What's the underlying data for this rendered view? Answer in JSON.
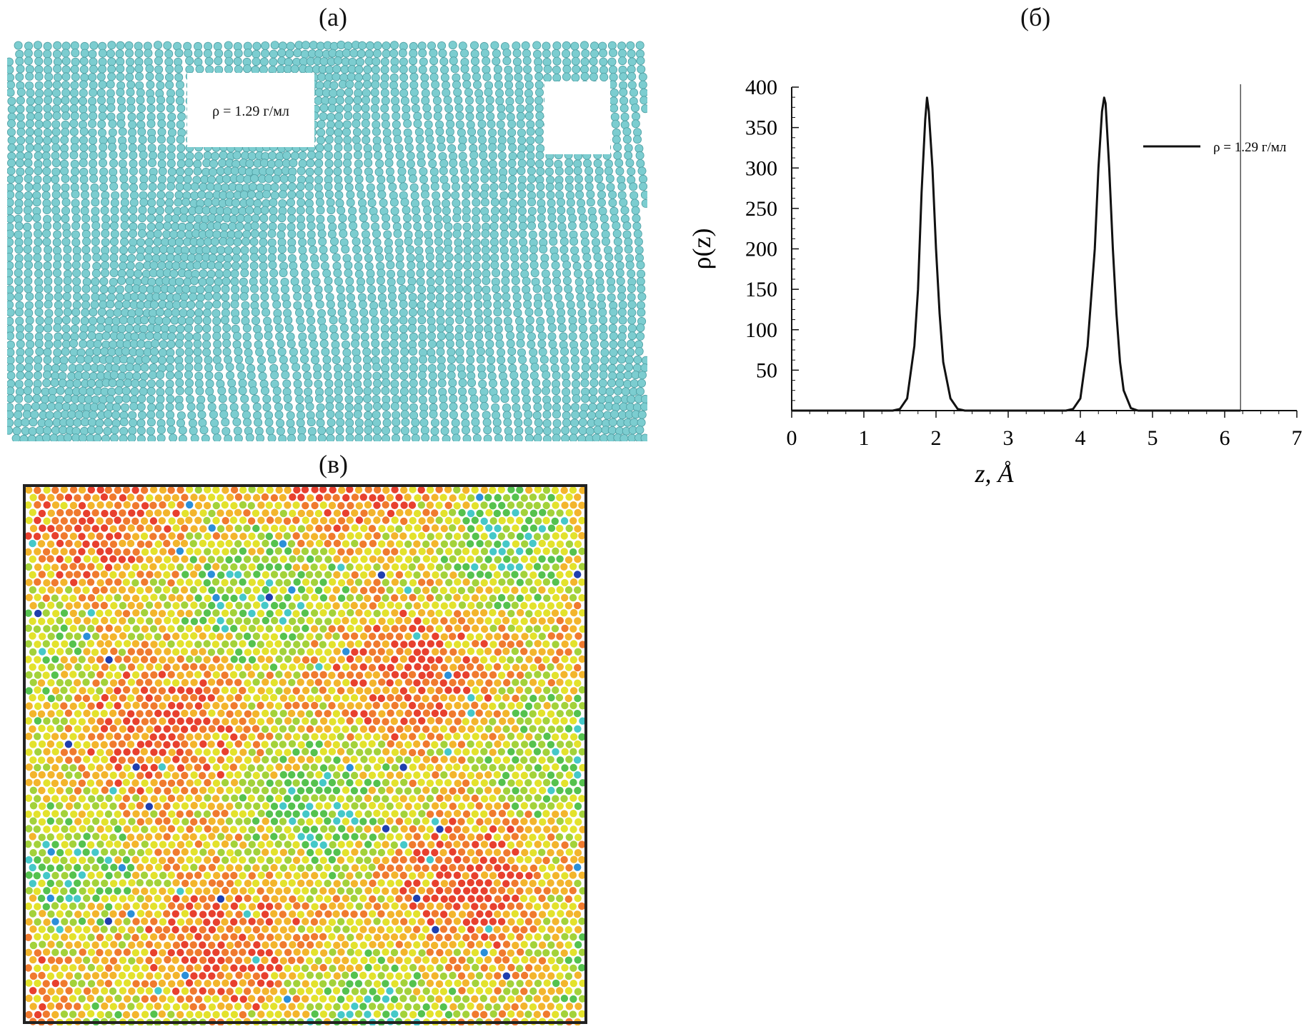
{
  "panels": {
    "a": {
      "label": "(а)",
      "annotation": "ρ = 1.29 г/мл",
      "atom_color": "#7ccdd0"
    },
    "b": {
      "label": "(б)"
    },
    "c": {
      "label": "(в)",
      "palette": [
        "#e8402e",
        "#f07a2e",
        "#f3b52c",
        "#e3e22c",
        "#a3d23a",
        "#55c24e",
        "#45c8c8",
        "#2b8fd8",
        "#1f3fae"
      ]
    }
  },
  "chart_data": {
    "type": "line",
    "title": "",
    "xlabel": "z, Å",
    "ylabel": "ρ(z)",
    "xlim": [
      0,
      7
    ],
    "ylim": [
      0,
      400
    ],
    "xticks": [
      0,
      1,
      2,
      3,
      4,
      5,
      6,
      7
    ],
    "yticks": [
      50,
      100,
      150,
      200,
      250,
      300,
      350,
      400
    ],
    "vline_x": 6.22,
    "legend_location": "top-right",
    "series": [
      {
        "name": "ρ = 1.29 г/мл",
        "x": [
          0,
          1.4,
          1.5,
          1.6,
          1.7,
          1.75,
          1.8,
          1.85,
          1.875,
          1.9,
          1.95,
          2.0,
          2.05,
          2.1,
          2.2,
          2.3,
          2.4,
          3.8,
          3.9,
          4.0,
          4.1,
          4.2,
          4.25,
          4.3,
          4.33,
          4.35,
          4.4,
          4.45,
          4.5,
          4.55,
          4.6,
          4.7,
          4.8,
          6.22
        ],
        "values": [
          0,
          0,
          2,
          15,
          80,
          150,
          270,
          360,
          387,
          370,
          300,
          200,
          120,
          60,
          15,
          2,
          0,
          0,
          2,
          15,
          80,
          200,
          300,
          370,
          387,
          380,
          300,
          200,
          120,
          60,
          25,
          3,
          0,
          0
        ]
      }
    ]
  }
}
